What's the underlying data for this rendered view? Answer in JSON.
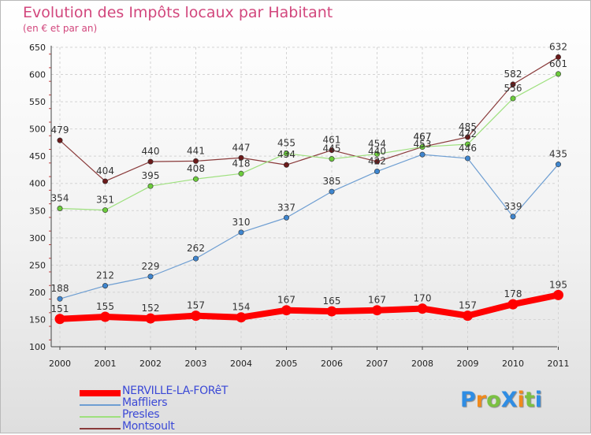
{
  "title": "Evolution des Impôts locaux par Habitant",
  "subtitle": "(en € et par an)",
  "logo": {
    "text": "ProXiti",
    "letters": [
      "P",
      "r",
      "o",
      "X",
      "i",
      "t",
      "i"
    ],
    "colors": [
      "#2f8de4",
      "#f08a1c",
      "#7bc142",
      "#2f8de4",
      "#f08a1c",
      "#7bc142",
      "#2f8de4"
    ]
  },
  "chart_data": {
    "type": "line",
    "title": "Evolution des Impôts locaux par Habitant",
    "subtitle": "(en € et par an)",
    "xlabel": "",
    "ylabel": "",
    "x": [
      "2000",
      "2001",
      "2002",
      "2003",
      "2004",
      "2005",
      "2006",
      "2007",
      "2008",
      "2009",
      "2010",
      "2011"
    ],
    "ylim": [
      100,
      650
    ],
    "yticks": [
      100,
      150,
      200,
      250,
      300,
      350,
      400,
      450,
      500,
      550,
      600,
      650
    ],
    "grid": true,
    "legend_position": "bottom",
    "series": [
      {
        "name": "NERVILLE-LA-FORêT",
        "color": "#ff0000",
        "marker_color": "#ff0000",
        "width": 8,
        "values": [
          151,
          155,
          152,
          157,
          154,
          167,
          165,
          167,
          170,
          157,
          178,
          195
        ]
      },
      {
        "name": "Maffliers",
        "color": "#6e9ed2",
        "marker_color": "#3f86cf",
        "width": 1.2,
        "values": [
          188,
          212,
          229,
          262,
          310,
          337,
          385,
          422,
          453,
          446,
          339,
          435
        ]
      },
      {
        "name": "Presles",
        "color": "#9ee07e",
        "marker_color": "#6ccc3c",
        "width": 1.2,
        "values": [
          354,
          351,
          395,
          408,
          418,
          455,
          445,
          454,
          467,
          472,
          556,
          601
        ]
      },
      {
        "name": "Montsoult",
        "color": "#8a3b3b",
        "marker_color": "#6b1a1a",
        "width": 1.2,
        "values": [
          479,
          404,
          440,
          441,
          447,
          434,
          461,
          440,
          467,
          485,
          582,
          632
        ]
      }
    ],
    "data_labels": {
      "NERVILLE-LA-FORêT": [
        "151",
        "155",
        "152",
        "157",
        "154",
        "167",
        "165",
        "167",
        "170",
        "157",
        "178",
        "195"
      ],
      "Maffliers": [
        "188",
        "212",
        "229",
        "262",
        "310",
        "337",
        "385",
        "422",
        "453",
        "446",
        "339",
        "435"
      ],
      "Presles": [
        "354",
        "351",
        "395",
        "408",
        "418",
        "455",
        "445",
        "454",
        "467",
        "472",
        "556",
        "601"
      ],
      "Montsoult": [
        "479",
        "404",
        "440",
        "441",
        "447",
        "434",
        "461",
        "440",
        "467",
        "485",
        "582",
        "632"
      ]
    }
  }
}
